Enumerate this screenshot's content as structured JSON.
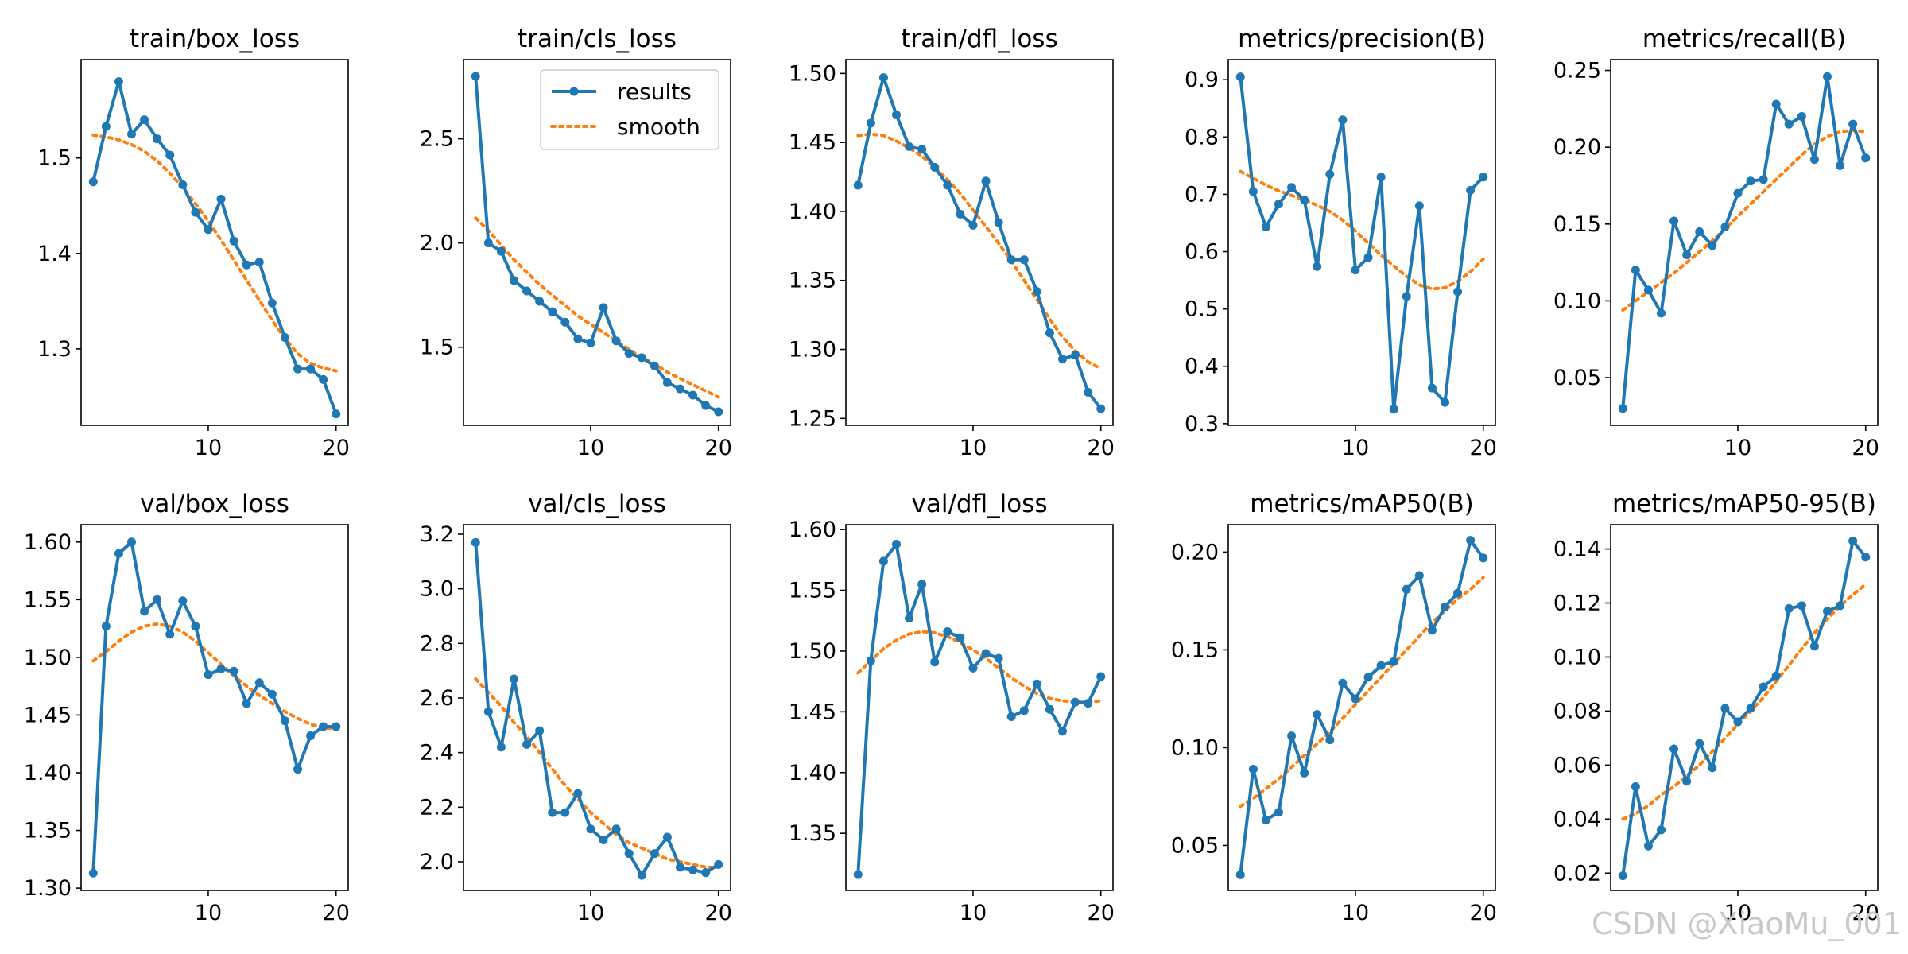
{
  "colors": {
    "results": "#1f77b4",
    "smooth": "#ff7f0e",
    "axis": "#000000",
    "background": "#ffffff",
    "watermark": "#c9c9c9"
  },
  "legend": {
    "labels": [
      "results",
      "smooth"
    ],
    "location": "upper right of second panel"
  },
  "watermark": "CSDN @XiaoMu_001",
  "chart_data": [
    {
      "type": "line",
      "title": "train/box_loss",
      "x": [
        1,
        2,
        3,
        4,
        5,
        6,
        7,
        8,
        9,
        10,
        11,
        12,
        13,
        14,
        15,
        16,
        17,
        18,
        19,
        20
      ],
      "xticks": [
        10,
        20
      ],
      "xlim": [
        0.05,
        20.95
      ],
      "ylim": [
        1.22,
        1.603
      ],
      "yticks": [
        1.3,
        1.4,
        1.5
      ],
      "ytick_labels": [
        "1.3",
        "1.4",
        "1.5"
      ],
      "series": [
        {
          "name": "results",
          "values": [
            1.475,
            1.533,
            1.58,
            1.525,
            1.54,
            1.52,
            1.503,
            1.472,
            1.443,
            1.425,
            1.457,
            1.413,
            1.388,
            1.391,
            1.348,
            1.312,
            1.279,
            1.279,
            1.268,
            1.232
          ]
        },
        {
          "name": "smooth",
          "values": [
            1.524,
            1.522,
            1.519,
            1.514,
            1.507,
            1.497,
            1.484,
            1.469,
            1.452,
            1.434,
            1.414,
            1.393,
            1.372,
            1.351,
            1.33,
            1.311,
            1.295,
            1.285,
            1.28,
            1.277
          ]
        }
      ]
    },
    {
      "type": "line",
      "title": "train/cls_loss",
      "x": [
        1,
        2,
        3,
        4,
        5,
        6,
        7,
        8,
        9,
        10,
        11,
        12,
        13,
        14,
        15,
        16,
        17,
        18,
        19,
        20
      ],
      "xticks": [
        10,
        20
      ],
      "xlim": [
        0.05,
        20.95
      ],
      "ylim": [
        1.125,
        2.88
      ],
      "yticks": [
        1.5,
        2.0,
        2.5
      ],
      "ytick_labels": [
        "1.5",
        "2.0",
        "2.5"
      ],
      "series": [
        {
          "name": "results",
          "values": [
            2.8,
            2.0,
            1.96,
            1.82,
            1.77,
            1.72,
            1.67,
            1.62,
            1.54,
            1.52,
            1.69,
            1.53,
            1.47,
            1.45,
            1.41,
            1.33,
            1.3,
            1.27,
            1.22,
            1.19
          ]
        },
        {
          "name": "smooth",
          "values": [
            2.12,
            2.06,
            1.99,
            1.92,
            1.86,
            1.8,
            1.75,
            1.7,
            1.65,
            1.61,
            1.57,
            1.53,
            1.49,
            1.45,
            1.42,
            1.38,
            1.35,
            1.32,
            1.29,
            1.26
          ]
        }
      ]
    },
    {
      "type": "line",
      "title": "train/dfl_loss",
      "x": [
        1,
        2,
        3,
        4,
        5,
        6,
        7,
        8,
        9,
        10,
        11,
        12,
        13,
        14,
        15,
        16,
        17,
        18,
        19,
        20
      ],
      "xticks": [
        10,
        20
      ],
      "xlim": [
        0.05,
        20.95
      ],
      "ylim": [
        1.245,
        1.51
      ],
      "yticks": [
        1.25,
        1.3,
        1.35,
        1.4,
        1.45,
        1.5
      ],
      "ytick_labels": [
        "1.25",
        "1.30",
        "1.35",
        "1.40",
        "1.45",
        "1.50"
      ],
      "series": [
        {
          "name": "results",
          "values": [
            1.419,
            1.464,
            1.497,
            1.47,
            1.447,
            1.445,
            1.432,
            1.419,
            1.398,
            1.39,
            1.422,
            1.392,
            1.365,
            1.365,
            1.342,
            1.312,
            1.293,
            1.296,
            1.269,
            1.257
          ]
        },
        {
          "name": "smooth",
          "values": [
            1.455,
            1.456,
            1.455,
            1.451,
            1.446,
            1.44,
            1.432,
            1.423,
            1.413,
            1.401,
            1.389,
            1.377,
            1.364,
            1.35,
            1.336,
            1.322,
            1.309,
            1.299,
            1.291,
            1.286
          ]
        }
      ]
    },
    {
      "type": "line",
      "title": "metrics/precision(B)",
      "x": [
        1,
        2,
        3,
        4,
        5,
        6,
        7,
        8,
        9,
        10,
        11,
        12,
        13,
        14,
        15,
        16,
        17,
        18,
        19,
        20
      ],
      "xticks": [
        10,
        20
      ],
      "xlim": [
        0.05,
        20.95
      ],
      "ylim": [
        0.297,
        0.935
      ],
      "yticks": [
        0.3,
        0.4,
        0.5,
        0.6,
        0.7,
        0.8,
        0.9
      ],
      "ytick_labels": [
        "0.3",
        "0.4",
        "0.5",
        "0.6",
        "0.7",
        "0.8",
        "0.9"
      ],
      "series": [
        {
          "name": "results",
          "values": [
            0.905,
            0.705,
            0.643,
            0.683,
            0.712,
            0.69,
            0.574,
            0.735,
            0.83,
            0.568,
            0.59,
            0.73,
            0.325,
            0.522,
            0.68,
            0.362,
            0.337,
            0.53,
            0.707,
            0.73
          ]
        },
        {
          "name": "smooth",
          "values": [
            0.74,
            0.728,
            0.716,
            0.706,
            0.698,
            0.69,
            0.681,
            0.67,
            0.655,
            0.636,
            0.615,
            0.594,
            0.575,
            0.557,
            0.542,
            0.535,
            0.537,
            0.548,
            0.565,
            0.587
          ]
        }
      ]
    },
    {
      "type": "line",
      "title": "metrics/recall(B)",
      "x": [
        1,
        2,
        3,
        4,
        5,
        6,
        7,
        8,
        9,
        10,
        11,
        12,
        13,
        14,
        15,
        16,
        17,
        18,
        19,
        20
      ],
      "xticks": [
        10,
        20
      ],
      "xlim": [
        0.05,
        20.95
      ],
      "ylim": [
        0.019,
        0.257
      ],
      "yticks": [
        0.05,
        0.1,
        0.15,
        0.2,
        0.25
      ],
      "ytick_labels": [
        "0.05",
        "0.10",
        "0.15",
        "0.20",
        "0.25"
      ],
      "series": [
        {
          "name": "results",
          "values": [
            0.03,
            0.12,
            0.107,
            0.092,
            0.152,
            0.13,
            0.145,
            0.136,
            0.148,
            0.17,
            0.178,
            0.179,
            0.228,
            0.215,
            0.22,
            0.192,
            0.246,
            0.188,
            0.215,
            0.193
          ]
        },
        {
          "name": "smooth",
          "values": [
            0.094,
            0.1,
            0.106,
            0.112,
            0.118,
            0.125,
            0.132,
            0.139,
            0.147,
            0.155,
            0.163,
            0.171,
            0.179,
            0.187,
            0.195,
            0.202,
            0.207,
            0.21,
            0.211,
            0.21
          ]
        }
      ]
    },
    {
      "type": "line",
      "title": "val/box_loss",
      "x": [
        1,
        2,
        3,
        4,
        5,
        6,
        7,
        8,
        9,
        10,
        11,
        12,
        13,
        14,
        15,
        16,
        17,
        18,
        19,
        20
      ],
      "xticks": [
        10,
        20
      ],
      "xlim": [
        0.05,
        20.95
      ],
      "ylim": [
        1.298,
        1.615
      ],
      "yticks": [
        1.3,
        1.35,
        1.4,
        1.45,
        1.5,
        1.55,
        1.6
      ],
      "ytick_labels": [
        "1.30",
        "1.35",
        "1.40",
        "1.45",
        "1.50",
        "1.55",
        "1.60"
      ],
      "series": [
        {
          "name": "results",
          "values": [
            1.313,
            1.527,
            1.59,
            1.6,
            1.54,
            1.55,
            1.52,
            1.549,
            1.527,
            1.485,
            1.49,
            1.488,
            1.46,
            1.478,
            1.468,
            1.445,
            1.403,
            1.432,
            1.44,
            1.44
          ]
        },
        {
          "name": "smooth",
          "values": [
            1.497,
            1.505,
            1.514,
            1.522,
            1.527,
            1.529,
            1.527,
            1.522,
            1.514,
            1.504,
            1.494,
            1.484,
            1.475,
            1.467,
            1.46,
            1.453,
            1.447,
            1.442,
            1.439,
            1.438
          ]
        }
      ]
    },
    {
      "type": "line",
      "title": "val/cls_loss",
      "x": [
        1,
        2,
        3,
        4,
        5,
        6,
        7,
        8,
        9,
        10,
        11,
        12,
        13,
        14,
        15,
        16,
        17,
        18,
        19,
        20
      ],
      "xticks": [
        10,
        20
      ],
      "xlim": [
        0.05,
        20.95
      ],
      "ylim": [
        1.895,
        3.235
      ],
      "yticks": [
        2.0,
        2.2,
        2.4,
        2.6,
        2.8,
        3.0,
        3.2
      ],
      "ytick_labels": [
        "2.0",
        "2.2",
        "2.4",
        "2.6",
        "2.8",
        "3.0",
        "3.2"
      ],
      "series": [
        {
          "name": "results",
          "values": [
            3.17,
            2.55,
            2.42,
            2.67,
            2.43,
            2.48,
            2.18,
            2.18,
            2.25,
            2.12,
            2.08,
            2.12,
            2.03,
            1.95,
            2.03,
            2.09,
            1.98,
            1.97,
            1.96,
            1.99
          ]
        },
        {
          "name": "smooth",
          "values": [
            2.67,
            2.62,
            2.57,
            2.51,
            2.46,
            2.4,
            2.34,
            2.28,
            2.23,
            2.18,
            2.14,
            2.1,
            2.07,
            2.05,
            2.03,
            2.01,
            2.0,
            1.99,
            1.98,
            1.98
          ]
        }
      ]
    },
    {
      "type": "line",
      "title": "val/dfl_loss",
      "x": [
        1,
        2,
        3,
        4,
        5,
        6,
        7,
        8,
        9,
        10,
        11,
        12,
        13,
        14,
        15,
        16,
        17,
        18,
        19,
        20
      ],
      "xticks": [
        10,
        20
      ],
      "xlim": [
        0.05,
        20.95
      ],
      "ylim": [
        1.303,
        1.604
      ],
      "yticks": [
        1.35,
        1.4,
        1.45,
        1.5,
        1.55,
        1.6
      ],
      "ytick_labels": [
        "1.35",
        "1.40",
        "1.45",
        "1.50",
        "1.55",
        "1.60"
      ],
      "series": [
        {
          "name": "results",
          "values": [
            1.316,
            1.492,
            1.574,
            1.588,
            1.527,
            1.555,
            1.491,
            1.516,
            1.511,
            1.486,
            1.498,
            1.494,
            1.446,
            1.451,
            1.473,
            1.452,
            1.434,
            1.458,
            1.457,
            1.479
          ]
        },
        {
          "name": "smooth",
          "values": [
            1.482,
            1.492,
            1.502,
            1.509,
            1.514,
            1.516,
            1.515,
            1.512,
            1.507,
            1.501,
            1.494,
            1.486,
            1.478,
            1.471,
            1.465,
            1.461,
            1.459,
            1.458,
            1.458,
            1.459
          ]
        }
      ]
    },
    {
      "type": "line",
      "title": "metrics/mAP50(B)",
      "x": [
        1,
        2,
        3,
        4,
        5,
        6,
        7,
        8,
        9,
        10,
        11,
        12,
        13,
        14,
        15,
        16,
        17,
        18,
        19,
        20
      ],
      "xticks": [
        10,
        20
      ],
      "xlim": [
        0.05,
        20.95
      ],
      "ylim": [
        0.027,
        0.214
      ],
      "yticks": [
        0.05,
        0.1,
        0.15,
        0.2
      ],
      "ytick_labels": [
        "0.05",
        "0.10",
        "0.15",
        "0.20"
      ],
      "series": [
        {
          "name": "results",
          "values": [
            0.035,
            0.089,
            0.063,
            0.067,
            0.106,
            0.087,
            0.117,
            0.104,
            0.133,
            0.125,
            0.136,
            0.142,
            0.144,
            0.181,
            0.188,
            0.16,
            0.172,
            0.179,
            0.206,
            0.197
          ]
        },
        {
          "name": "smooth",
          "values": [
            0.07,
            0.074,
            0.079,
            0.084,
            0.09,
            0.096,
            0.102,
            0.108,
            0.115,
            0.122,
            0.129,
            0.136,
            0.143,
            0.15,
            0.157,
            0.164,
            0.17,
            0.176,
            0.181,
            0.187
          ]
        }
      ]
    },
    {
      "type": "line",
      "title": "metrics/mAP50-95(B)",
      "x": [
        1,
        2,
        3,
        4,
        5,
        6,
        7,
        8,
        9,
        10,
        11,
        12,
        13,
        14,
        15,
        16,
        17,
        18,
        19,
        20
      ],
      "xticks": [
        10,
        20
      ],
      "xlim": [
        0.05,
        20.95
      ],
      "ylim": [
        0.0136,
        0.149
      ],
      "yticks": [
        0.02,
        0.04,
        0.06,
        0.08,
        0.1,
        0.12,
        0.14
      ],
      "ytick_labels": [
        "0.02",
        "0.04",
        "0.06",
        "0.08",
        "0.10",
        "0.12",
        "0.14"
      ],
      "series": [
        {
          "name": "results",
          "values": [
            0.019,
            0.052,
            0.03,
            0.036,
            0.066,
            0.054,
            0.068,
            0.059,
            0.081,
            0.076,
            0.081,
            0.089,
            0.093,
            0.118,
            0.119,
            0.104,
            0.117,
            0.119,
            0.143,
            0.137
          ]
        },
        {
          "name": "smooth",
          "values": [
            0.04,
            0.042,
            0.045,
            0.049,
            0.052,
            0.056,
            0.06,
            0.065,
            0.07,
            0.075,
            0.08,
            0.085,
            0.091,
            0.097,
            0.103,
            0.109,
            0.114,
            0.119,
            0.123,
            0.127
          ]
        }
      ]
    }
  ]
}
